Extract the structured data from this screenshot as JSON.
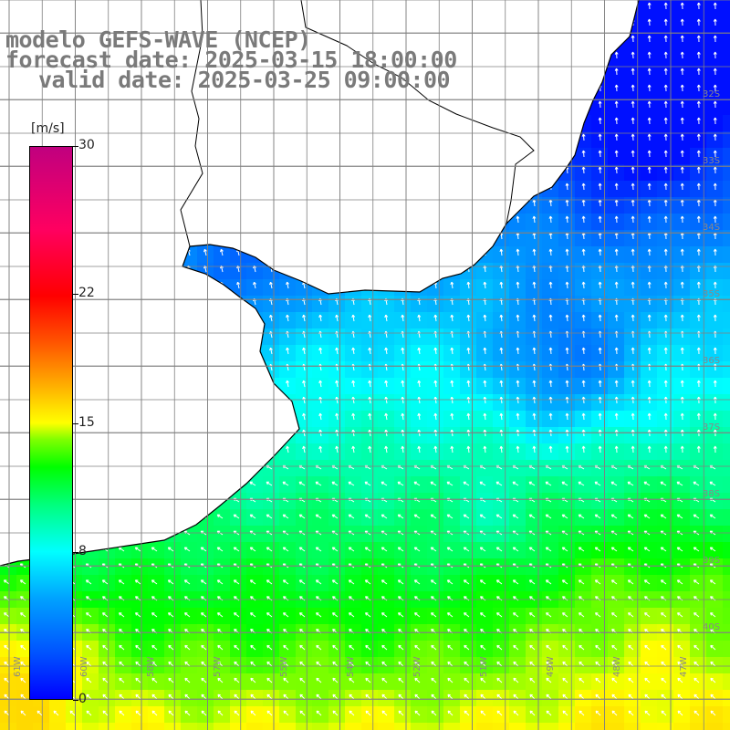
{
  "title": {
    "model": "modelo GEFS-WAVE (NCEP)",
    "forecast": "forecast date: 2025-03-15 18:00:00",
    "valid": "valid date: 2025-03-25 09:00:00"
  },
  "colorbar": {
    "units": "[m/s]",
    "labels": [
      "30",
      "22",
      "15",
      "8",
      "0"
    ],
    "label_values": [
      30,
      22,
      15,
      8,
      0
    ],
    "range": [
      0,
      30
    ],
    "colors": [
      "#0000ff",
      "#00ffff",
      "#00ff00",
      "#ffff00",
      "#ff0000",
      "#c0007f"
    ]
  },
  "map": {
    "variable": "wind speed",
    "land_color": "#ffffff",
    "coastline_color": "#000000",
    "grid_color": "#808080",
    "arrow_color": "#ffffff",
    "lon_labels": [
      "61W",
      "60W",
      "58W",
      "57W",
      "55W",
      "54W",
      "52W",
      "51W",
      "49W",
      "48W",
      "47W"
    ],
    "lat_labels": [
      "32S",
      "33S",
      "34S",
      "35S",
      "36S",
      "37S",
      "38S",
      "39S",
      "40S"
    ]
  }
}
